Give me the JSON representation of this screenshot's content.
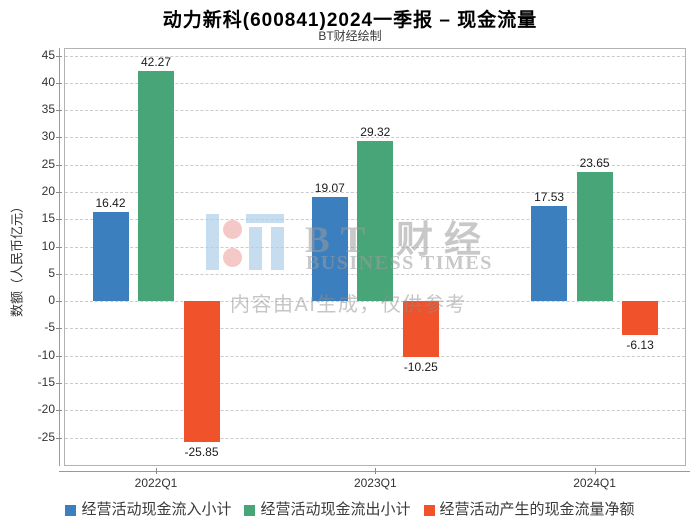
{
  "header": {
    "title": "动力新科(600841)2024一季报 – 现金流量",
    "subtitle": "BT财经绘制"
  },
  "watermark": {
    "brand_cn": "BT 财经",
    "brand_en": "BUSINESS TIMES",
    "disclaimer": "内容由AI生成，仅供参考"
  },
  "chart_data": {
    "type": "bar",
    "title": "动力新科(600841)2024一季报 – 现金流量",
    "subtitle": "BT财经绘制",
    "categories": [
      "2022Q1",
      "2023Q1",
      "2024Q1"
    ],
    "series": [
      {
        "name": "经营活动现金流入小计",
        "color": "#3b7fbe",
        "values": [
          16.42,
          19.07,
          17.53
        ]
      },
      {
        "name": "经营活动现金流出小计",
        "color": "#47a578",
        "values": [
          42.27,
          29.32,
          23.65
        ]
      },
      {
        "name": "经营活动产生的现金流量净额",
        "color": "#f0522b",
        "values": [
          -25.85,
          -10.25,
          -6.13
        ]
      }
    ],
    "ylabel": "数额（人民币亿元）",
    "xlabel": "",
    "yticks": [
      45,
      40,
      35,
      30,
      25,
      20,
      15,
      10,
      5,
      0,
      -5,
      -10,
      -15,
      -20,
      -25
    ],
    "ylim": [
      -30.2,
      46.4
    ],
    "grid": "horizontal-dashed",
    "legend_position": "bottom",
    "bar_value_labels": true
  }
}
